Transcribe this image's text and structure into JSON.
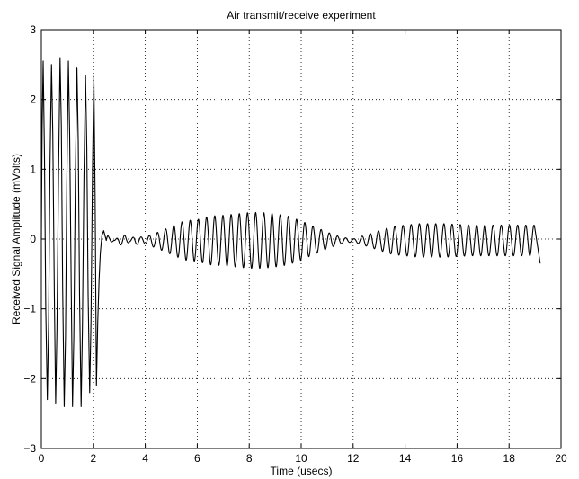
{
  "chart_data": {
    "type": "line",
    "title": "Air transmit/receive experiment",
    "xlabel": "Time (usecs)",
    "ylabel": "Received Signal Amplitude (mVolts)",
    "xlim": [
      0,
      20
    ],
    "ylim": [
      -3,
      3
    ],
    "xticks": [
      0,
      2,
      4,
      6,
      8,
      10,
      12,
      14,
      16,
      18,
      20
    ],
    "yticks": [
      -3,
      -2,
      -1,
      0,
      1,
      2,
      3
    ],
    "xtick_labels": [
      "0",
      "2",
      "4",
      "6",
      "8",
      "10",
      "12",
      "14",
      "16",
      "18",
      "20"
    ],
    "ytick_labels": [
      "−3",
      "−2",
      "−1",
      "0",
      "1",
      "2",
      "3"
    ],
    "grid": true,
    "series": [
      {
        "color": "#000000",
        "points": [
          [
            0.0,
            0.0
          ],
          [
            0.03,
            1.6
          ],
          [
            0.07,
            2.55
          ],
          [
            0.12,
            1.2
          ],
          [
            0.17,
            -1.0
          ],
          [
            0.23,
            -2.3
          ],
          [
            0.28,
            -1.2
          ],
          [
            0.33,
            1.0
          ],
          [
            0.39,
            2.5
          ],
          [
            0.44,
            1.5
          ],
          [
            0.5,
            -0.8
          ],
          [
            0.55,
            -2.35
          ],
          [
            0.6,
            -1.3
          ],
          [
            0.66,
            0.9
          ],
          [
            0.72,
            2.6
          ],
          [
            0.77,
            1.6
          ],
          [
            0.82,
            -0.7
          ],
          [
            0.88,
            -2.4
          ],
          [
            0.93,
            -1.4
          ],
          [
            0.98,
            0.8
          ],
          [
            1.04,
            2.55
          ],
          [
            1.09,
            1.5
          ],
          [
            1.15,
            -0.7
          ],
          [
            1.2,
            -2.4
          ],
          [
            1.25,
            -1.4
          ],
          [
            1.31,
            0.9
          ],
          [
            1.37,
            2.45
          ],
          [
            1.42,
            1.4
          ],
          [
            1.47,
            -0.8
          ],
          [
            1.53,
            -2.4
          ],
          [
            1.58,
            -1.3
          ],
          [
            1.64,
            0.9
          ],
          [
            1.7,
            2.35
          ],
          [
            1.75,
            1.3
          ],
          [
            1.8,
            -0.8
          ],
          [
            1.86,
            -2.2
          ],
          [
            1.91,
            -1.2
          ],
          [
            1.97,
            1.0
          ],
          [
            2.02,
            2.35
          ],
          [
            2.07,
            0.6
          ],
          [
            2.12,
            -2.1
          ],
          [
            2.17,
            -1.2
          ],
          [
            2.22,
            -0.6
          ],
          [
            2.27,
            -0.2
          ],
          [
            2.33,
            0.05
          ],
          [
            2.4,
            0.12
          ],
          [
            2.5,
            0.1
          ],
          [
            2.6,
            0.05
          ],
          [
            2.8,
            0.0
          ],
          [
            3.0,
            0.06
          ],
          [
            3.2,
            0.08
          ],
          [
            3.4,
            0.02
          ],
          [
            3.6,
            0.06
          ],
          [
            3.8,
            0.05
          ],
          [
            4.0,
            0.05
          ],
          [
            4.5,
            0.12
          ],
          [
            5.0,
            0.2
          ],
          [
            5.5,
            0.28
          ],
          [
            6.0,
            0.3
          ],
          [
            6.5,
            0.35
          ],
          [
            7.0,
            0.36
          ],
          [
            7.5,
            0.38
          ],
          [
            8.0,
            0.4
          ],
          [
            8.5,
            0.4
          ],
          [
            9.0,
            0.38
          ],
          [
            9.5,
            0.35
          ],
          [
            10.0,
            0.28
          ],
          [
            10.5,
            0.2
          ],
          [
            11.0,
            0.12
          ],
          [
            11.5,
            0.05
          ],
          [
            12.0,
            0.02
          ],
          [
            12.5,
            0.08
          ],
          [
            13.0,
            0.14
          ],
          [
            13.5,
            0.2
          ],
          [
            14.0,
            0.22
          ],
          [
            14.5,
            0.24
          ],
          [
            15.0,
            0.24
          ],
          [
            15.5,
            0.24
          ],
          [
            16.0,
            0.23
          ],
          [
            16.5,
            0.22
          ],
          [
            17.0,
            0.22
          ],
          [
            17.5,
            0.22
          ],
          [
            18.0,
            0.22
          ],
          [
            18.5,
            0.22
          ],
          [
            19.0,
            0.22
          ],
          [
            19.2,
            -0.35
          ]
        ]
      }
    ]
  }
}
